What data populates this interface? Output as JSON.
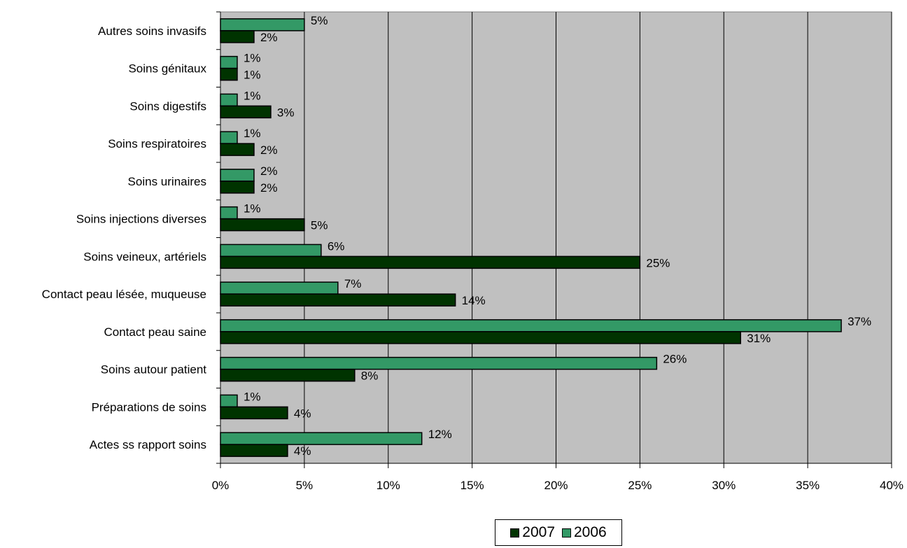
{
  "chart_data": {
    "type": "bar",
    "orientation": "horizontal",
    "categories": [
      "Autres soins invasifs",
      "Soins génitaux",
      "Soins digestifs",
      "Soins respiratoires",
      "Soins urinaires",
      "Soins injections diverses",
      "Soins veineux, artériels",
      "Contact peau lésée, muqueuse",
      "Contact peau saine",
      "Soins autour patient",
      "Préparations de soins",
      "Actes ss rapport soins"
    ],
    "series": [
      {
        "name": "2006",
        "color": "#339966",
        "values": [
          5,
          1,
          1,
          1,
          2,
          1,
          6,
          7,
          37,
          26,
          1,
          12
        ]
      },
      {
        "name": "2007",
        "color": "#003300",
        "values": [
          2,
          1,
          3,
          2,
          2,
          5,
          25,
          14,
          31,
          8,
          4,
          4
        ]
      }
    ],
    "xlim": [
      0,
      40
    ],
    "x_ticks": [
      0,
      5,
      10,
      15,
      20,
      25,
      30,
      35,
      40
    ],
    "value_suffix": "%",
    "title": "",
    "xlabel": "",
    "ylabel": "",
    "grid": true,
    "plot_background": "#c0c0c0",
    "legend": {
      "position": "bottom",
      "entries": [
        {
          "label": "2007",
          "color": "#003300"
        },
        {
          "label": "2006",
          "color": "#339966"
        }
      ]
    }
  }
}
